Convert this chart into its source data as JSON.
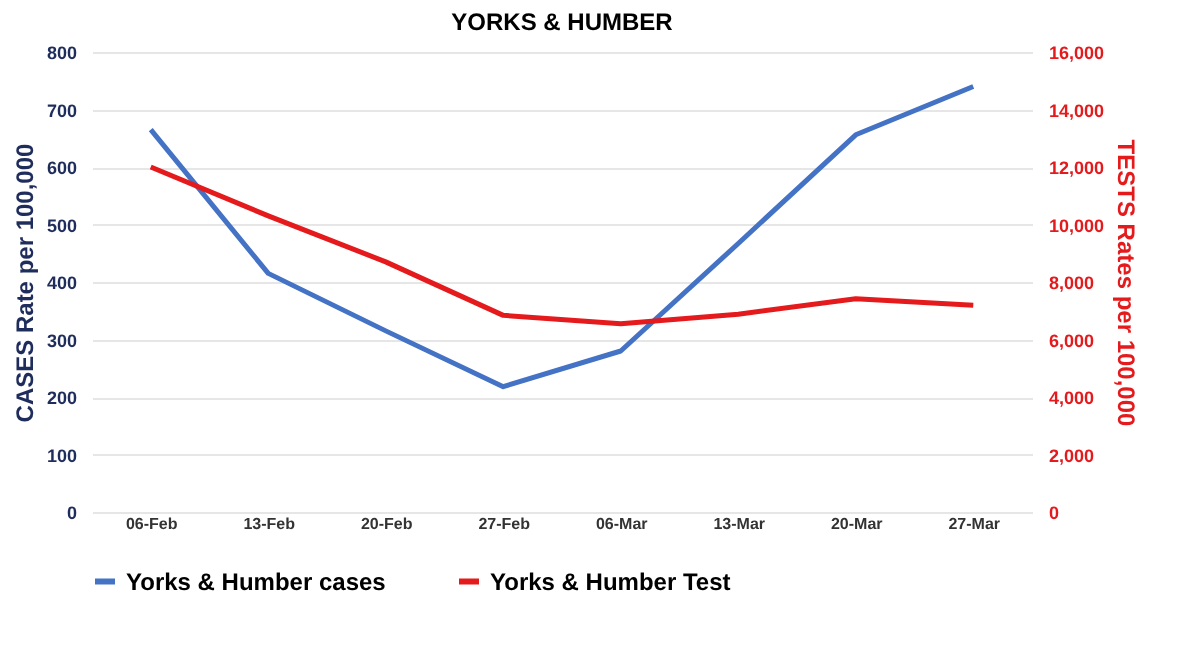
{
  "chart_data": {
    "type": "line",
    "title": "YORKS & HUMBER",
    "ylabel": "CASES Rate per 100,000",
    "y2label": "TESTS Rates per 100,000",
    "categories": [
      "06-Feb",
      "13-Feb",
      "20-Feb",
      "27-Feb",
      "06-Mar",
      "13-Mar",
      "20-Mar",
      "27-Mar"
    ],
    "series": [
      {
        "name": "Yorks & Humber cases",
        "color": "#4472c4",
        "values": [
          665,
          415,
          315,
          218,
          280,
          467,
          656,
          740
        ]
      },
      {
        "name": "Yorks & Humber Test",
        "color": "#e41a1c",
        "axis": "y2",
        "values": [
          12000,
          10300,
          8700,
          6840,
          6550,
          6880,
          7420,
          7190
        ]
      }
    ],
    "ylim": [
      0,
      800
    ],
    "yticks": [
      0,
      100,
      200,
      300,
      400,
      500,
      600,
      700,
      800
    ],
    "y2lim": [
      0,
      16000
    ],
    "y2ticks": [
      {
        "value": 0,
        "label": "0"
      },
      {
        "value": 2000,
        "label": "2,000"
      },
      {
        "value": 4000,
        "label": "4,000"
      },
      {
        "value": 6000,
        "label": "6,000"
      },
      {
        "value": 8000,
        "label": "8,000"
      },
      {
        "value": 10000,
        "label": "10,000"
      },
      {
        "value": 12000,
        "label": "12,000"
      },
      {
        "value": 14000,
        "label": "14,000"
      },
      {
        "value": 16000,
        "label": "16,000"
      }
    ],
    "grid": "y",
    "legend": "bottom",
    "marker": "none",
    "line_style": "solid"
  }
}
